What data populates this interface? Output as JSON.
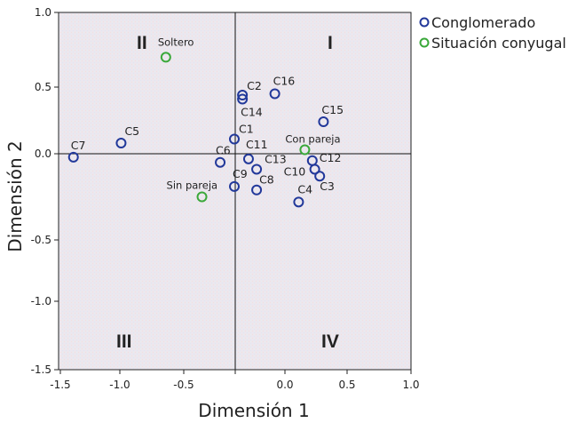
{
  "chart_data": {
    "type": "scatter",
    "xlabel": "Dimensión 1",
    "ylabel": "Dimensión 2",
    "xlim": [
      -1.5,
      1.0
    ],
    "ylim": [
      -1.5,
      1.0
    ],
    "xticks": [
      "-1.5",
      "-1.0",
      "-0.5",
      "0.0",
      "0.5",
      "1.0"
    ],
    "yticks": [
      "1.0",
      "0.5",
      "0.0",
      "-0.5",
      "-1.0",
      "-1.5"
    ],
    "grid": false,
    "reference_lines": true,
    "legend_position": "top-right",
    "quadrant_labels": [
      "I",
      "II",
      "III",
      "IV"
    ],
    "series": [
      {
        "name": "Conglomerado",
        "color": "#22389a",
        "points": [
          {
            "label": "C7",
            "x": -1.39,
            "y": -0.02
          },
          {
            "label": "C5",
            "x": -0.99,
            "y": 0.08
          },
          {
            "label": "C2",
            "x": -0.21,
            "y": 0.44
          },
          {
            "label": "C14",
            "x": -0.21,
            "y": 0.41
          },
          {
            "label": "C16",
            "x": -0.05,
            "y": 0.45
          },
          {
            "label": "C15",
            "x": 0.31,
            "y": 0.24
          },
          {
            "label": "C1",
            "x": -0.25,
            "y": 0.11
          },
          {
            "label": "C11",
            "x": -0.18,
            "y": -0.03
          },
          {
            "label": "C6",
            "x": -0.32,
            "y": -0.05
          },
          {
            "label": "C12",
            "x": 0.22,
            "y": -0.04
          },
          {
            "label": "C13",
            "x": -0.14,
            "y": -0.09
          },
          {
            "label": "C10",
            "x": 0.24,
            "y": -0.09
          },
          {
            "label": "C3",
            "x": 0.28,
            "y": -0.13
          },
          {
            "label": "C9",
            "x": -0.25,
            "y": -0.19
          },
          {
            "label": "C8",
            "x": -0.14,
            "y": -0.21
          },
          {
            "label": "C4",
            "x": 0.11,
            "y": -0.28
          }
        ]
      },
      {
        "name": "Situación conyugal",
        "color": "#3aa83a",
        "points": [
          {
            "label": "Soltero",
            "x": -0.64,
            "y": 0.7
          },
          {
            "label": "Con pareja",
            "x": 0.16,
            "y": 0.03
          },
          {
            "label": "Sin pareja",
            "x": -0.41,
            "y": -0.25
          }
        ]
      }
    ]
  }
}
